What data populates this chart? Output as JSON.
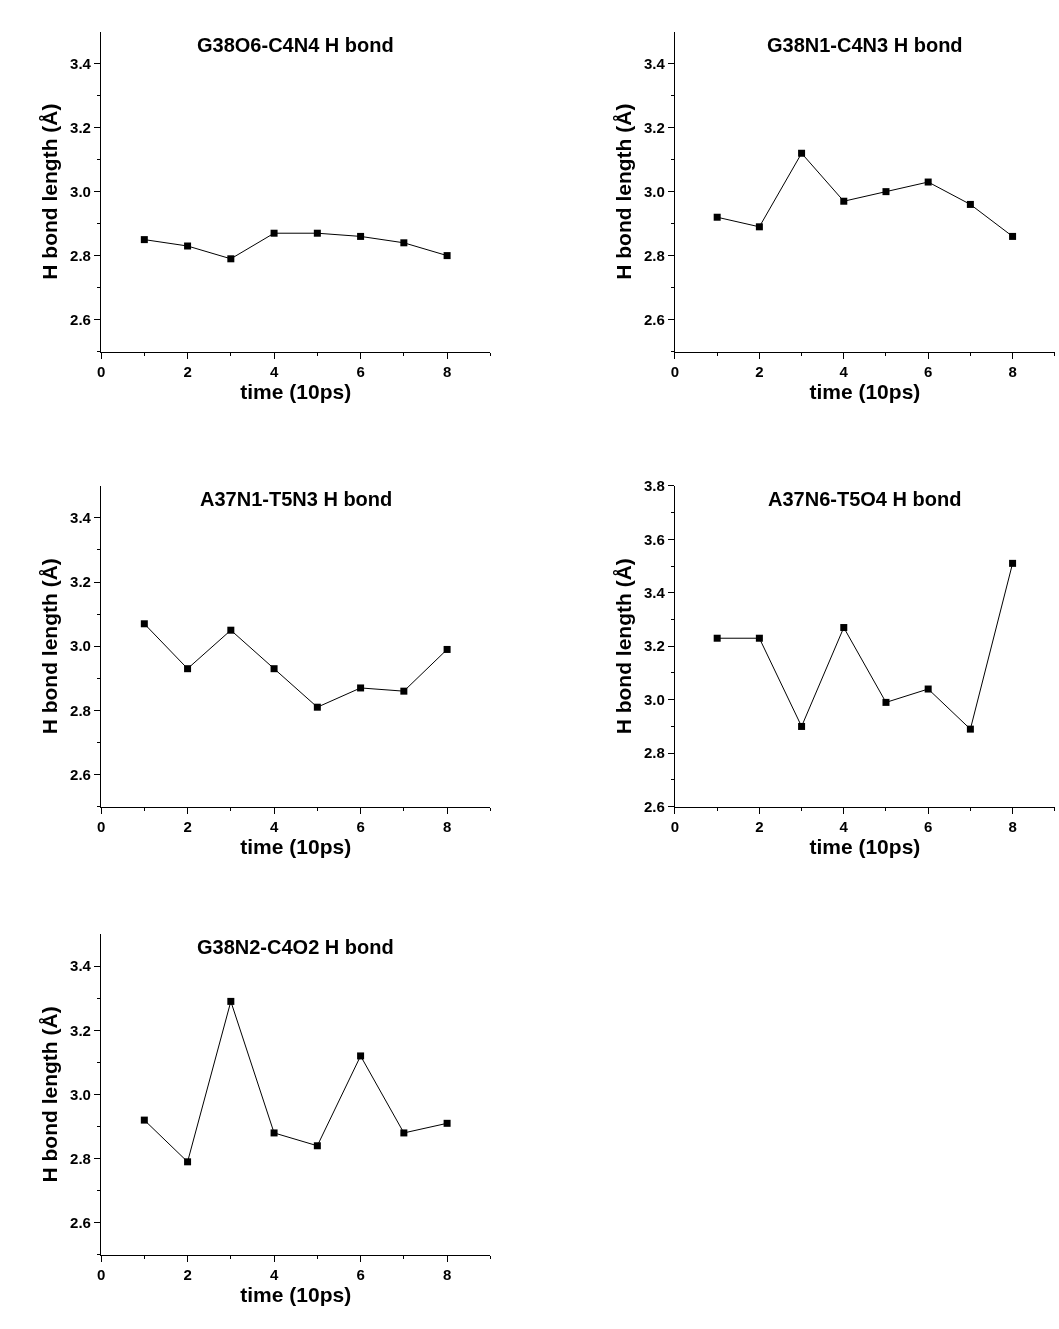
{
  "chart_data": [
    {
      "type": "line",
      "title": "G38O6-C4N4 H bond",
      "xlabel": "time (10ps)",
      "ylabel": "H bond length (Å)",
      "x": [
        1,
        2,
        3,
        4,
        5,
        6,
        7,
        8
      ],
      "series": [
        {
          "color": "#000000",
          "values": [
            2.85,
            2.83,
            2.79,
            2.87,
            2.87,
            2.86,
            2.84,
            2.8
          ]
        }
      ],
      "xlim": [
        0,
        9
      ],
      "ylim": [
        2.5,
        3.5
      ],
      "xticks": [
        0,
        {
          "value": 1,
          "label": null
        },
        2,
        {
          "value": 3,
          "label": null
        },
        4,
        {
          "value": 5,
          "label": null
        },
        6,
        {
          "value": 7,
          "label": null
        },
        8,
        {
          "value": 9,
          "label": null
        }
      ],
      "yticks": [
        {
          "value": 2.5,
          "label": null
        },
        2.6,
        {
          "value": 2.7,
          "label": null
        },
        2.8,
        {
          "value": 2.9,
          "label": null
        },
        {
          "value": 3.0,
          "label": "3.0"
        },
        {
          "value": 3.1,
          "label": null
        },
        3.2,
        {
          "value": 3.3,
          "label": null
        },
        3.4
      ],
      "marker": "square",
      "line_style": "solid"
    },
    {
      "type": "line",
      "title": "G38N1-C4N3 H bond",
      "xlabel": "time (10ps)",
      "ylabel": "H bond length (Å)",
      "x": [
        1,
        2,
        3,
        4,
        5,
        6,
        7,
        8
      ],
      "series": [
        {
          "color": "#000000",
          "values": [
            2.92,
            2.89,
            3.12,
            2.97,
            3.0,
            3.03,
            2.96,
            2.86
          ]
        }
      ],
      "xlim": [
        0,
        9
      ],
      "ylim": [
        2.5,
        3.5
      ],
      "xticks": [
        0,
        {
          "value": 1,
          "label": null
        },
        2,
        {
          "value": 3,
          "label": null
        },
        4,
        {
          "value": 5,
          "label": null
        },
        6,
        {
          "value": 7,
          "label": null
        },
        8,
        {
          "value": 9,
          "label": null
        }
      ],
      "yticks": [
        {
          "value": 2.5,
          "label": null
        },
        2.6,
        {
          "value": 2.7,
          "label": null
        },
        2.8,
        {
          "value": 2.9,
          "label": null
        },
        {
          "value": 3.0,
          "label": "3.0"
        },
        {
          "value": 3.1,
          "label": null
        },
        3.2,
        {
          "value": 3.3,
          "label": null
        },
        3.4
      ],
      "marker": "square",
      "line_style": "solid"
    },
    {
      "type": "line",
      "title": "A37N1-T5N3 H bond",
      "xlabel": "time (10ps)",
      "ylabel": "H bond length (Å)",
      "x": [
        1,
        2,
        3,
        4,
        5,
        6,
        7,
        8
      ],
      "series": [
        {
          "color": "#000000",
          "values": [
            3.07,
            2.93,
            3.05,
            2.93,
            2.81,
            2.87,
            2.86,
            2.99
          ]
        }
      ],
      "xlim": [
        0,
        9
      ],
      "ylim": [
        2.5,
        3.5
      ],
      "xticks": [
        0,
        {
          "value": 1,
          "label": null
        },
        2,
        {
          "value": 3,
          "label": null
        },
        4,
        {
          "value": 5,
          "label": null
        },
        6,
        {
          "value": 7,
          "label": null
        },
        8,
        {
          "value": 9,
          "label": null
        }
      ],
      "yticks": [
        {
          "value": 2.5,
          "label": null
        },
        2.6,
        {
          "value": 2.7,
          "label": null
        },
        2.8,
        {
          "value": 2.9,
          "label": null
        },
        {
          "value": 3.0,
          "label": "3.0"
        },
        {
          "value": 3.1,
          "label": null
        },
        3.2,
        {
          "value": 3.3,
          "label": null
        },
        3.4
      ],
      "marker": "square",
      "line_style": "solid"
    },
    {
      "type": "line",
      "title": "A37N6-T5O4 H bond",
      "xlabel": "time (10ps)",
      "ylabel": "H bond length (Å)",
      "x": [
        1,
        2,
        3,
        4,
        5,
        6,
        7,
        8
      ],
      "series": [
        {
          "color": "#000000",
          "values": [
            3.23,
            3.23,
            2.9,
            3.27,
            2.99,
            3.04,
            2.89,
            3.51
          ]
        }
      ],
      "xlim": [
        0,
        9
      ],
      "ylim": [
        2.6,
        3.8
      ],
      "xticks": [
        0,
        {
          "value": 1,
          "label": null
        },
        2,
        {
          "value": 3,
          "label": null
        },
        4,
        {
          "value": 5,
          "label": null
        },
        6,
        {
          "value": 7,
          "label": null
        },
        8,
        {
          "value": 9,
          "label": null
        }
      ],
      "yticks": [
        2.6,
        {
          "value": 2.7,
          "label": null
        },
        2.8,
        {
          "value": 2.9,
          "label": null
        },
        {
          "value": 3.0,
          "label": "3.0"
        },
        {
          "value": 3.1,
          "label": null
        },
        3.2,
        {
          "value": 3.3,
          "label": null
        },
        3.4,
        {
          "value": 3.5,
          "label": null
        },
        3.6,
        {
          "value": 3.7,
          "label": null
        },
        3.8
      ],
      "marker": "square",
      "line_style": "solid"
    },
    {
      "type": "line",
      "title": "G38N2-C4O2 H bond",
      "xlabel": "time (10ps)",
      "ylabel": "H bond length (Å)",
      "x": [
        1,
        2,
        3,
        4,
        5,
        6,
        7,
        8
      ],
      "series": [
        {
          "color": "#000000",
          "values": [
            2.92,
            2.79,
            3.29,
            2.88,
            2.84,
            3.12,
            2.88,
            2.91
          ]
        }
      ],
      "xlim": [
        0,
        9
      ],
      "ylim": [
        2.5,
        3.5
      ],
      "xticks": [
        0,
        {
          "value": 1,
          "label": null
        },
        2,
        {
          "value": 3,
          "label": null
        },
        4,
        {
          "value": 5,
          "label": null
        },
        6,
        {
          "value": 7,
          "label": null
        },
        8,
        {
          "value": 9,
          "label": null
        }
      ],
      "yticks": [
        {
          "value": 2.5,
          "label": null
        },
        2.6,
        {
          "value": 2.7,
          "label": null
        },
        2.8,
        {
          "value": 2.9,
          "label": null
        },
        {
          "value": 3.0,
          "label": "3.0"
        },
        {
          "value": 3.1,
          "label": null
        },
        3.2,
        {
          "value": 3.3,
          "label": null
        },
        3.4
      ],
      "marker": "square",
      "line_style": "solid"
    }
  ]
}
